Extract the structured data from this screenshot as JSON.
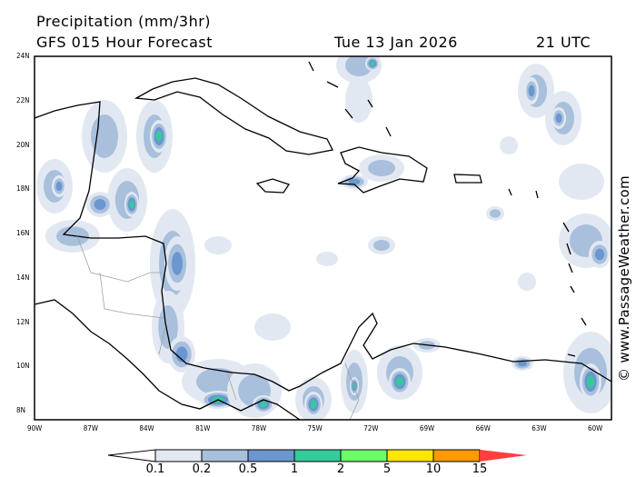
{
  "header": {
    "title": "Precipitation (mm/3hr)",
    "model": "GFS 015 Hour Forecast",
    "date": "Tue 13 Jan 2026",
    "time": "21 UTC"
  },
  "map": {
    "lon_range": [
      "90W",
      "59W"
    ],
    "lat_range": [
      "7.6N",
      "24N"
    ],
    "lat_ticks": [
      "24N",
      "22N",
      "20N",
      "18N",
      "16N",
      "14N",
      "12N",
      "10N",
      "8N"
    ],
    "lon_ticks": [
      "90W",
      "87W",
      "84W",
      "81W",
      "78W",
      "75W",
      "72W",
      "69W",
      "66W",
      "63W",
      "60W"
    ],
    "land_fill": "#ffffff",
    "coastline_color": "#000000",
    "border_color": "#a0a0a0"
  },
  "watermark": "© www.PassageWeather.com",
  "colorbar": {
    "labels": [
      "0.1",
      "0.2",
      "0.5",
      "1",
      "2",
      "5",
      "10",
      "15"
    ],
    "colors": [
      "#ffffff",
      "#e2e8f2",
      "#a8c0dc",
      "#6b96d0",
      "#36c99a",
      "#6bfc68",
      "#ffe600",
      "#ff9900",
      "#ff3e3e"
    ]
  }
}
